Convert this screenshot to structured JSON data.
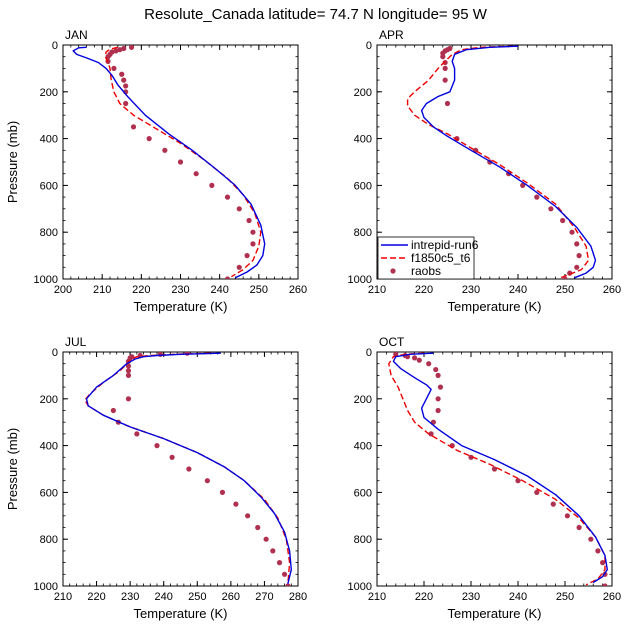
{
  "title": "Resolute_Canada  latitude= 74.7 N longitude= 95 W",
  "xlabel": "Temperature (K)",
  "ylabel": "Pressure (mb)",
  "series_meta": [
    {
      "name": "intrepid-run6",
      "color": "#0000dd",
      "style": "solid"
    },
    {
      "name": "f1850c5_t6",
      "color": "#ee0000",
      "style": "dashed"
    },
    {
      "name": "raobs",
      "color": "#b03050",
      "style": "dots"
    }
  ],
  "chart_data": [
    {
      "type": "line",
      "panel": "JAN",
      "xlim": [
        200,
        260
      ],
      "xticks": [
        200,
        210,
        220,
        230,
        240,
        250,
        260
      ],
      "ylim": [
        0,
        1000
      ],
      "yticks": [
        0,
        200,
        400,
        600,
        800,
        1000
      ],
      "y_inverted": true,
      "series": [
        {
          "name": "intrepid-run6",
          "x": [
            206,
            204,
            202.6,
            203.5,
            206,
            209,
            211,
            212.5,
            214,
            216.5,
            221,
            227,
            233,
            239,
            244,
            248,
            250.5,
            251.5,
            251,
            249.5,
            247,
            244
          ],
          "y": [
            10,
            12,
            25,
            40,
            55,
            75,
            100,
            130,
            170,
            220,
            300,
            380,
            450,
            530,
            600,
            680,
            770,
            850,
            900,
            940,
            970,
            995
          ]
        },
        {
          "name": "f1850c5_t6",
          "x": [
            214,
            212,
            211,
            210.8,
            211.5,
            212,
            212.3,
            213,
            214.5,
            218,
            223,
            230,
            236,
            242,
            246,
            249,
            250.5,
            250,
            248.5,
            246,
            243
          ],
          "y": [
            10,
            18,
            30,
            50,
            75,
            100,
            150,
            200,
            250,
            300,
            350,
            420,
            490,
            570,
            640,
            720,
            800,
            860,
            920,
            960,
            990
          ]
        },
        {
          "name": "raobs",
          "x": [
            217.5,
            215.5,
            214.5,
            213.5,
            212.5,
            212,
            211.5,
            211.5,
            213,
            215,
            215.5,
            216,
            216,
            216,
            218,
            222,
            226,
            230,
            234,
            238,
            242,
            245,
            247.5,
            248.5,
            248.5,
            247,
            245,
            242
          ],
          "y": [
            10,
            15,
            20,
            25,
            30,
            40,
            50,
            70,
            100,
            125,
            150,
            175,
            200,
            250,
            350,
            400,
            450,
            500,
            550,
            600,
            650,
            700,
            750,
            800,
            850,
            900,
            950,
            1000
          ]
        }
      ]
    },
    {
      "type": "line",
      "panel": "APR",
      "xlim": [
        210,
        260
      ],
      "xticks": [
        210,
        220,
        230,
        240,
        250,
        260
      ],
      "ylim": [
        0,
        1000
      ],
      "yticks": [
        0,
        200,
        400,
        600,
        800,
        1000
      ],
      "y_inverted": true,
      "series": [
        {
          "name": "intrepid-run6",
          "x": [
            240,
            234,
            229,
            226.5,
            226,
            226.5,
            226.5,
            225.5,
            223,
            220.5,
            219.5,
            220,
            222,
            225,
            230,
            236,
            242,
            248,
            252.5,
            255.5,
            256.5,
            256,
            254.5,
            252
          ],
          "y": [
            5,
            10,
            20,
            40,
            70,
            100,
            150,
            200,
            220,
            250,
            280,
            310,
            350,
            390,
            450,
            520,
            600,
            690,
            780,
            860,
            920,
            950,
            975,
            995
          ]
        },
        {
          "name": "f1850c5_t6",
          "x": [
            239,
            232,
            228,
            226,
            224.5,
            223,
            221,
            218,
            216.5,
            216.5,
            218,
            221,
            225,
            230,
            236,
            242,
            248,
            252,
            254.5,
            255,
            253.5,
            251,
            249
          ],
          "y": [
            5,
            10,
            20,
            40,
            70,
            100,
            150,
            200,
            230,
            260,
            300,
            340,
            380,
            440,
            510,
            590,
            680,
            780,
            860,
            920,
            960,
            980,
            995
          ]
        },
        {
          "name": "raobs",
          "x": [
            225.5,
            225,
            224.5,
            224,
            224,
            224.5,
            224.5,
            224.5,
            225,
            227,
            231,
            234,
            238,
            241,
            244,
            247,
            249.5,
            251.5,
            252.5,
            253,
            252.5,
            251,
            250
          ],
          "y": [
            15,
            20,
            25,
            35,
            50,
            75,
            100,
            150,
            250,
            400,
            450,
            500,
            550,
            600,
            650,
            700,
            750,
            800,
            850,
            900,
            950,
            975,
            1000
          ]
        }
      ]
    },
    {
      "type": "line",
      "panel": "JUL",
      "xlim": [
        210,
        280
      ],
      "xticks": [
        210,
        220,
        230,
        240,
        250,
        260,
        270,
        280
      ],
      "ylim": [
        0,
        1000
      ],
      "yticks": [
        0,
        200,
        400,
        600,
        800,
        1000
      ],
      "y_inverted": true,
      "series": [
        {
          "name": "intrepid-run6",
          "x": [
            257,
            245,
            238,
            234,
            231.5,
            229,
            225,
            220,
            217,
            217.5,
            222,
            230,
            240,
            250,
            258,
            264,
            269,
            273,
            276,
            277.5,
            278,
            277
          ],
          "y": [
            5,
            10,
            15,
            20,
            30,
            50,
            100,
            150,
            200,
            230,
            270,
            320,
            370,
            430,
            490,
            550,
            620,
            690,
            770,
            850,
            930,
            990
          ]
        },
        {
          "name": "f1850c5_t6",
          "x": [
            254,
            243,
            236,
            232,
            230.5,
            229,
            227,
            222,
            218,
            216.5,
            217.5,
            222,
            230,
            240,
            250,
            258,
            264,
            270,
            274,
            276.5,
            277.5,
            277
          ],
          "y": [
            5,
            10,
            15,
            20,
            30,
            50,
            80,
            130,
            180,
            205,
            230,
            270,
            320,
            370,
            430,
            490,
            550,
            630,
            710,
            800,
            900,
            990
          ]
        },
        {
          "name": "raobs",
          "x": [
            247,
            239,
            233,
            230.5,
            230,
            229.5,
            229.5,
            229.5,
            229.5,
            229.5,
            225,
            226.5,
            232,
            238,
            242.5,
            247.5,
            253,
            257.5,
            261.5,
            265,
            268,
            270.5,
            272.5,
            274.5,
            276,
            277
          ],
          "y": [
            5,
            10,
            15,
            20,
            25,
            40,
            60,
            80,
            100,
            200,
            250,
            300,
            350,
            400,
            450,
            500,
            550,
            600,
            650,
            700,
            750,
            800,
            850,
            900,
            950,
            1000
          ]
        }
      ]
    },
    {
      "type": "line",
      "panel": "OCT",
      "xlim": [
        210,
        260
      ],
      "xticks": [
        210,
        220,
        230,
        240,
        250,
        260
      ],
      "ylim": [
        0,
        1000
      ],
      "yticks": [
        0,
        200,
        400,
        600,
        800,
        1000
      ],
      "y_inverted": true,
      "series": [
        {
          "name": "intrepid-run6",
          "x": [
            222,
            217,
            214,
            213.5,
            215,
            218,
            220.5,
            221.5,
            220.5,
            219.5,
            220,
            223,
            228,
            235,
            242,
            248,
            253,
            256.5,
            258.5,
            259,
            258,
            256
          ],
          "y": [
            5,
            10,
            20,
            40,
            70,
            110,
            140,
            160,
            200,
            240,
            280,
            330,
            400,
            460,
            530,
            610,
            700,
            790,
            870,
            930,
            960,
            985
          ]
        },
        {
          "name": "f1850c5_t6",
          "x": [
            220,
            216,
            213.5,
            212.5,
            213,
            214.5,
            215.5,
            216.5,
            218,
            221,
            227,
            234,
            241,
            248,
            253,
            256.5,
            258.5,
            258.5,
            257,
            254.5
          ],
          "y": [
            5,
            10,
            20,
            50,
            100,
            150,
            200,
            250,
            300,
            350,
            420,
            480,
            550,
            630,
            710,
            790,
            870,
            930,
            970,
            995
          ]
        },
        {
          "name": "raobs",
          "x": [
            214,
            216,
            216.5,
            218,
            219,
            221,
            222.5,
            223,
            223.5,
            223,
            223,
            222,
            221.5,
            226,
            230,
            235,
            240,
            244,
            247.5,
            250.5,
            253,
            255.5,
            257,
            258,
            258.5,
            258.5
          ],
          "y": [
            10,
            15,
            20,
            25,
            35,
            50,
            75,
            100,
            150,
            200,
            250,
            300,
            350,
            400,
            450,
            500,
            550,
            600,
            650,
            700,
            750,
            800,
            850,
            900,
            950,
            1000
          ]
        }
      ]
    }
  ]
}
